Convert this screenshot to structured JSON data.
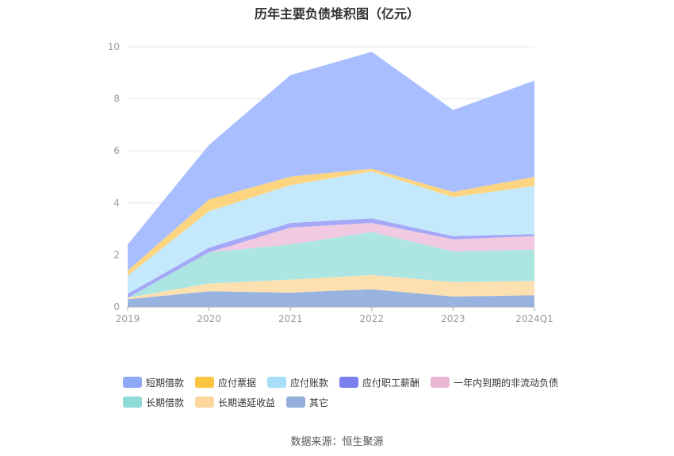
{
  "title": "历年主要负债堆积图（亿元）",
  "source": "数据来源：恒生聚源",
  "chart_data": {
    "type": "area",
    "stacked": true,
    "title": "历年主要负债堆积图（亿元）",
    "xlabel": "",
    "ylabel": "",
    "ylim": [
      0,
      10
    ],
    "yticks": [
      "0",
      "2",
      "4",
      "6",
      "8",
      "10"
    ],
    "categories": [
      "2019",
      "2020",
      "2021",
      "2022",
      "2023",
      "2024Q1"
    ],
    "series": [
      {
        "name": "其它",
        "color": "#98b3df",
        "values": [
          0.3,
          0.6,
          0.55,
          0.68,
          0.4,
          0.45
        ]
      },
      {
        "name": "长期递延收益",
        "color": "#fde0b0",
        "values": [
          0.05,
          0.3,
          0.5,
          0.55,
          0.55,
          0.55
        ]
      },
      {
        "name": "长期借款",
        "color": "#ace5e2",
        "values": [
          0.0,
          1.2,
          1.35,
          1.65,
          1.18,
          1.2
        ]
      },
      {
        "name": "一年内到期的非流动负债",
        "color": "#f1c9e1",
        "values": [
          0.0,
          0.0,
          0.65,
          0.35,
          0.47,
          0.52
        ]
      },
      {
        "name": "应付职工薪酬",
        "color": "#a4a8f7",
        "values": [
          0.15,
          0.18,
          0.18,
          0.18,
          0.12,
          0.08
        ]
      },
      {
        "name": "应付账款",
        "color": "#c5e9fc",
        "values": [
          0.7,
          1.4,
          1.45,
          1.8,
          1.5,
          1.85
        ]
      },
      {
        "name": "应付票据",
        "color": "#fdd580",
        "values": [
          0.2,
          0.45,
          0.33,
          0.1,
          0.2,
          0.35
        ]
      },
      {
        "name": "短期借款",
        "color": "#a8beff",
        "values": [
          1.0,
          2.1,
          3.9,
          4.5,
          3.15,
          3.7
        ]
      }
    ]
  },
  "legend": {
    "row1": [
      {
        "label": "短期借款",
        "color": "#8fa9f6"
      },
      {
        "label": "应付票据",
        "color": "#fcc440"
      },
      {
        "label": "应付账款",
        "color": "#a9def9"
      },
      {
        "label": "应付职工薪酬",
        "color": "#7b7fee"
      },
      {
        "label": "一年内到期的非流动负债",
        "color": "#eab6d6"
      }
    ],
    "row2": [
      {
        "label": "长期借款",
        "color": "#8fdbd8"
      },
      {
        "label": "长期递延收益",
        "color": "#fdd69e"
      },
      {
        "label": "其它",
        "color": "#94addb"
      }
    ]
  }
}
